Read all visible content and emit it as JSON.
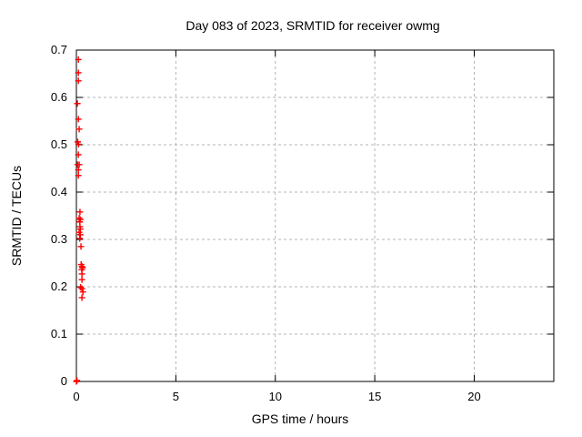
{
  "window": {
    "background": "#ffffff"
  },
  "chart_data": {
    "type": "scatter",
    "title": "Day 083 of 2023, SRMTID for receiver owmg",
    "xlabel": "GPS time / hours",
    "ylabel": "SRMTID / TECUs",
    "xlim": [
      0,
      24
    ],
    "ylim": [
      0,
      0.7
    ],
    "x_ticks": [
      0,
      5,
      10,
      15,
      20
    ],
    "x_tick_labels": [
      "0",
      "5",
      "10",
      "15",
      "20"
    ],
    "y_ticks": [
      0,
      0.1,
      0.2,
      0.3,
      0.4,
      0.5,
      0.6,
      0.7
    ],
    "y_tick_labels": [
      "0",
      "0.1",
      "0.2",
      "0.3",
      "0.4",
      "0.5",
      "0.6",
      "0.7"
    ],
    "grid": true,
    "legend": "none",
    "marker": "plus",
    "colors": {
      "marker": "#ff0000",
      "grid": "#b4b4b4",
      "axis": "#000000",
      "text": "#000000",
      "background": "#ffffff"
    },
    "series": [
      {
        "name": "SRMTID",
        "points": [
          [
            0.1,
            0.68
          ],
          [
            0.1,
            0.652
          ],
          [
            0.1,
            0.635
          ],
          [
            0.05,
            0.587
          ],
          [
            0.1,
            0.554
          ],
          [
            0.14,
            0.533
          ],
          [
            0.07,
            0.506
          ],
          [
            0.11,
            0.501
          ],
          [
            0.1,
            0.479
          ],
          [
            0.06,
            0.458
          ],
          [
            0.14,
            0.458
          ],
          [
            0.1,
            0.447
          ],
          [
            0.1,
            0.435
          ],
          [
            0.18,
            0.358
          ],
          [
            0.14,
            0.345
          ],
          [
            0.2,
            0.342
          ],
          [
            0.17,
            0.337
          ],
          [
            0.18,
            0.327
          ],
          [
            0.2,
            0.322
          ],
          [
            0.14,
            0.315
          ],
          [
            0.2,
            0.31
          ],
          [
            0.17,
            0.302
          ],
          [
            0.23,
            0.285
          ],
          [
            0.24,
            0.247
          ],
          [
            0.28,
            0.243
          ],
          [
            0.31,
            0.24
          ],
          [
            0.27,
            0.236
          ],
          [
            0.28,
            0.227
          ],
          [
            0.28,
            0.215
          ],
          [
            0.21,
            0.199
          ],
          [
            0.28,
            0.196
          ],
          [
            0.33,
            0.189
          ],
          [
            0.28,
            0.177
          ],
          [
            0.0,
            0.0
          ],
          [
            0.03,
            0.002
          ]
        ]
      }
    ]
  }
}
